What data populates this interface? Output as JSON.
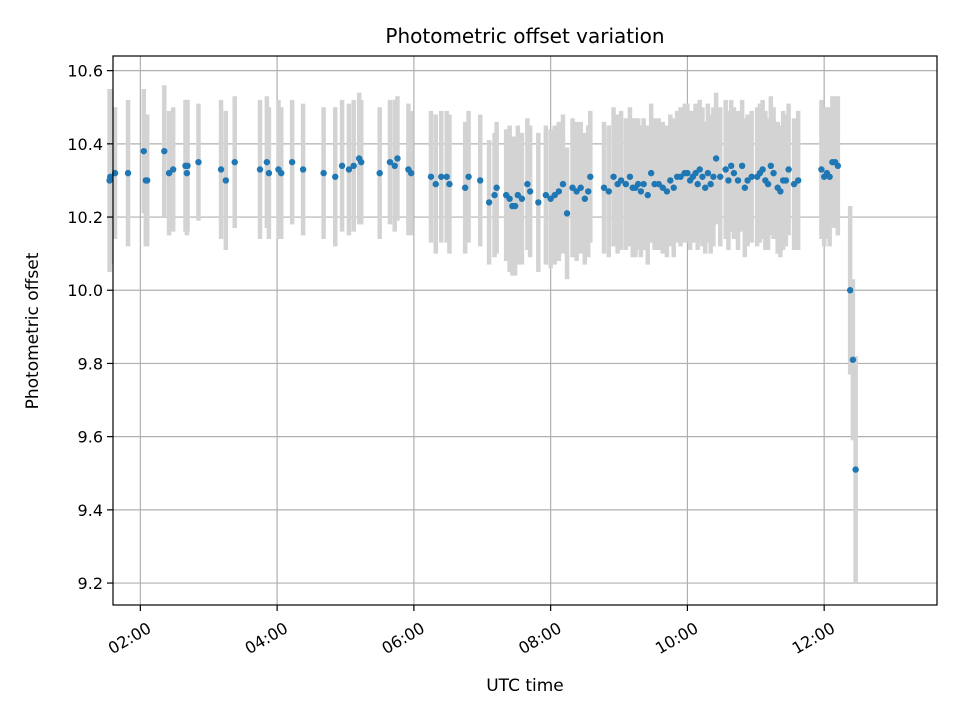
{
  "chart_data": {
    "type": "scatter",
    "title": "Photometric offset variation",
    "xlabel": "UTC time",
    "ylabel": "Photometric offset",
    "x_unit": "hours UTC",
    "xlim": [
      1.6,
      13.65
    ],
    "ylim": [
      9.14,
      10.64
    ],
    "x_ticks": [
      2,
      4,
      6,
      8,
      10,
      12
    ],
    "x_tick_labels": [
      "02:00",
      "04:00",
      "06:00",
      "08:00",
      "10:00",
      "12:00"
    ],
    "y_ticks": [
      9.2,
      9.4,
      9.6,
      9.8,
      10.0,
      10.2,
      10.4,
      10.6
    ],
    "y_tick_labels": [
      "9.2",
      "9.4",
      "9.6",
      "9.8",
      "10.0",
      "10.2",
      "10.4",
      "10.6"
    ],
    "grid": true,
    "colors": {
      "point": "#1f77b4",
      "errorbar": "#d3d3d3",
      "grid": "#b0b0b0"
    },
    "points": [
      [
        1.55,
        10.3,
        0.25
      ],
      [
        1.56,
        10.31,
        0.24
      ],
      [
        1.63,
        10.32,
        0.18
      ],
      [
        1.82,
        10.32,
        0.2
      ],
      [
        2.05,
        10.38,
        0.17
      ],
      [
        2.08,
        10.3,
        0.18
      ],
      [
        2.1,
        10.3,
        0.18
      ],
      [
        2.35,
        10.38,
        0.18
      ],
      [
        2.42,
        10.32,
        0.17
      ],
      [
        2.48,
        10.33,
        0.17
      ],
      [
        2.66,
        10.34,
        0.18
      ],
      [
        2.69,
        10.34,
        0.18
      ],
      [
        2.68,
        10.32,
        0.17
      ],
      [
        2.85,
        10.35,
        0.16
      ],
      [
        3.18,
        10.33,
        0.19
      ],
      [
        3.25,
        10.3,
        0.19
      ],
      [
        3.38,
        10.35,
        0.18
      ],
      [
        3.75,
        10.33,
        0.19
      ],
      [
        3.85,
        10.35,
        0.18
      ],
      [
        3.88,
        10.32,
        0.18
      ],
      [
        4.02,
        10.33,
        0.19
      ],
      [
        4.06,
        10.32,
        0.18
      ],
      [
        4.22,
        10.35,
        0.17
      ],
      [
        4.38,
        10.33,
        0.18
      ],
      [
        4.68,
        10.32,
        0.18
      ],
      [
        4.85,
        10.31,
        0.19
      ],
      [
        4.95,
        10.34,
        0.18
      ],
      [
        5.05,
        10.33,
        0.18
      ],
      [
        5.12,
        10.34,
        0.18
      ],
      [
        5.2,
        10.36,
        0.18
      ],
      [
        5.23,
        10.35,
        0.17
      ],
      [
        5.5,
        10.32,
        0.18
      ],
      [
        5.65,
        10.35,
        0.17
      ],
      [
        5.72,
        10.34,
        0.18
      ],
      [
        5.76,
        10.36,
        0.17
      ],
      [
        5.92,
        10.33,
        0.18
      ],
      [
        5.96,
        10.32,
        0.17
      ],
      [
        6.25,
        10.31,
        0.18
      ],
      [
        6.32,
        10.29,
        0.19
      ],
      [
        6.4,
        10.31,
        0.18
      ],
      [
        6.48,
        10.31,
        0.18
      ],
      [
        6.52,
        10.29,
        0.19
      ],
      [
        6.75,
        10.28,
        0.18
      ],
      [
        6.8,
        10.31,
        0.18
      ],
      [
        6.97,
        10.3,
        0.18
      ],
      [
        7.1,
        10.24,
        0.17
      ],
      [
        7.18,
        10.26,
        0.17
      ],
      [
        7.21,
        10.28,
        0.18
      ],
      [
        7.35,
        10.26,
        0.18
      ],
      [
        7.4,
        10.25,
        0.2
      ],
      [
        7.44,
        10.23,
        0.19
      ],
      [
        7.48,
        10.23,
        0.19
      ],
      [
        7.52,
        10.26,
        0.19
      ],
      [
        7.58,
        10.25,
        0.18
      ],
      [
        7.66,
        10.29,
        0.18
      ],
      [
        7.7,
        10.27,
        0.18
      ],
      [
        7.82,
        10.24,
        0.19
      ],
      [
        7.93,
        10.26,
        0.19
      ],
      [
        8.0,
        10.25,
        0.19
      ],
      [
        8.06,
        10.26,
        0.19
      ],
      [
        8.12,
        10.27,
        0.19
      ],
      [
        8.18,
        10.29,
        0.19
      ],
      [
        8.24,
        10.21,
        0.18
      ],
      [
        8.32,
        10.28,
        0.19
      ],
      [
        8.38,
        10.27,
        0.19
      ],
      [
        8.44,
        10.28,
        0.18
      ],
      [
        8.5,
        10.25,
        0.18
      ],
      [
        8.55,
        10.27,
        0.18
      ],
      [
        8.58,
        10.31,
        0.18
      ],
      [
        8.78,
        10.28,
        0.18
      ],
      [
        8.85,
        10.27,
        0.18
      ],
      [
        8.92,
        10.31,
        0.19
      ],
      [
        8.98,
        10.29,
        0.19
      ],
      [
        9.03,
        10.3,
        0.19
      ],
      [
        9.1,
        10.29,
        0.18
      ],
      [
        9.16,
        10.31,
        0.19
      ],
      [
        9.2,
        10.28,
        0.19
      ],
      [
        9.24,
        10.28,
        0.19
      ],
      [
        9.28,
        10.29,
        0.18
      ],
      [
        9.32,
        10.27,
        0.18
      ],
      [
        9.36,
        10.29,
        0.18
      ],
      [
        9.42,
        10.26,
        0.19
      ],
      [
        9.47,
        10.32,
        0.19
      ],
      [
        9.52,
        10.29,
        0.18
      ],
      [
        9.58,
        10.29,
        0.18
      ],
      [
        9.64,
        10.28,
        0.18
      ],
      [
        9.7,
        10.27,
        0.18
      ],
      [
        9.75,
        10.3,
        0.18
      ],
      [
        9.8,
        10.28,
        0.19
      ],
      [
        9.85,
        10.31,
        0.18
      ],
      [
        9.9,
        10.31,
        0.19
      ],
      [
        9.96,
        10.32,
        0.19
      ],
      [
        10.0,
        10.32,
        0.19
      ],
      [
        10.04,
        10.3,
        0.19
      ],
      [
        10.08,
        10.31,
        0.18
      ],
      [
        10.12,
        10.32,
        0.19
      ],
      [
        10.15,
        10.29,
        0.18
      ],
      [
        10.18,
        10.33,
        0.19
      ],
      [
        10.22,
        10.31,
        0.19
      ],
      [
        10.26,
        10.28,
        0.18
      ],
      [
        10.3,
        10.32,
        0.19
      ],
      [
        10.34,
        10.29,
        0.19
      ],
      [
        10.38,
        10.31,
        0.19
      ],
      [
        10.42,
        10.36,
        0.18
      ],
      [
        10.48,
        10.31,
        0.19
      ],
      [
        10.56,
        10.33,
        0.19
      ],
      [
        10.6,
        10.3,
        0.19
      ],
      [
        10.64,
        10.34,
        0.18
      ],
      [
        10.68,
        10.32,
        0.18
      ],
      [
        10.74,
        10.3,
        0.19
      ],
      [
        10.8,
        10.34,
        0.18
      ],
      [
        10.84,
        10.28,
        0.19
      ],
      [
        10.88,
        10.3,
        0.18
      ],
      [
        10.94,
        10.31,
        0.18
      ],
      [
        11.02,
        10.31,
        0.19
      ],
      [
        11.06,
        10.32,
        0.19
      ],
      [
        11.1,
        10.33,
        0.19
      ],
      [
        11.14,
        10.3,
        0.19
      ],
      [
        11.18,
        10.29,
        0.18
      ],
      [
        11.22,
        10.34,
        0.19
      ],
      [
        11.26,
        10.32,
        0.18
      ],
      [
        11.32,
        10.28,
        0.18
      ],
      [
        11.36,
        10.27,
        0.18
      ],
      [
        11.4,
        10.3,
        0.19
      ],
      [
        11.44,
        10.3,
        0.18
      ],
      [
        11.48,
        10.33,
        0.18
      ],
      [
        11.56,
        10.29,
        0.18
      ],
      [
        11.62,
        10.3,
        0.19
      ],
      [
        11.96,
        10.33,
        0.19
      ],
      [
        12.0,
        10.31,
        0.19
      ],
      [
        12.04,
        10.32,
        0.18
      ],
      [
        12.08,
        10.31,
        0.19
      ],
      [
        12.12,
        10.35,
        0.18
      ],
      [
        12.16,
        10.35,
        0.18
      ],
      [
        12.2,
        10.34,
        0.19
      ],
      [
        12.38,
        10.0,
        0.23
      ],
      [
        12.42,
        9.81,
        0.22
      ],
      [
        12.46,
        9.51,
        0.31
      ]
    ]
  }
}
